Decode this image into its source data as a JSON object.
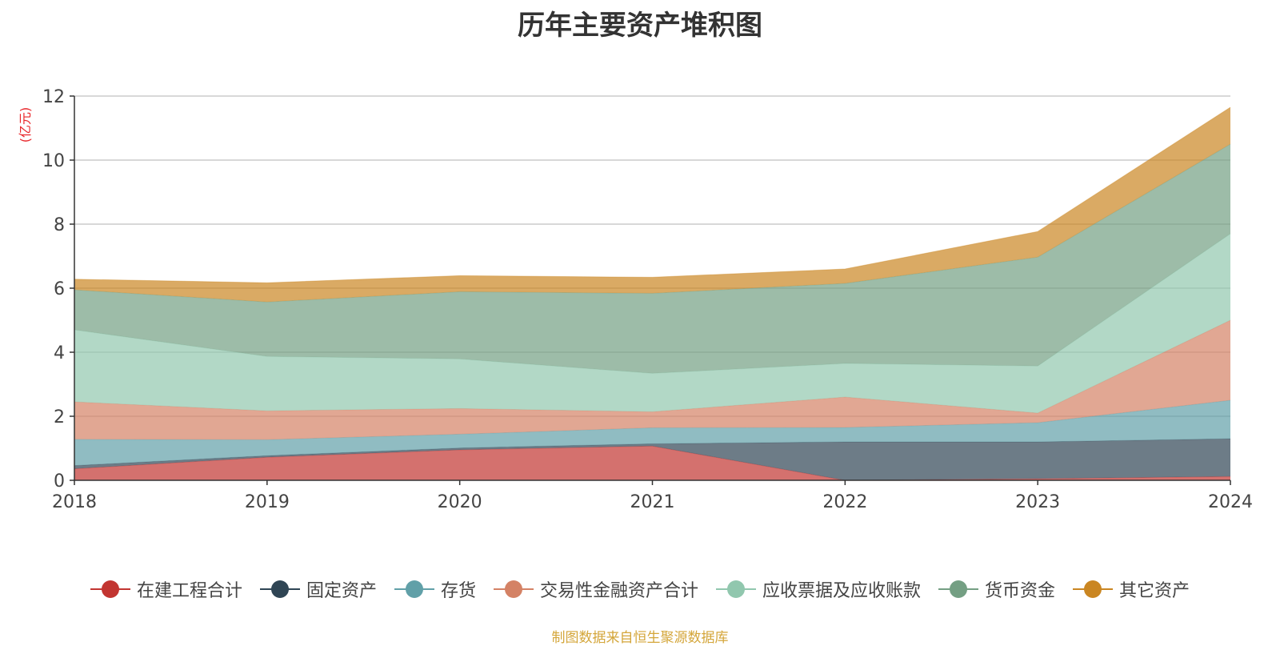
{
  "chart_data": {
    "type": "area",
    "stacked": true,
    "title": "历年主要资产堆积图",
    "ylabel": "(亿元)",
    "xlabel": "",
    "categories": [
      "2018",
      "2019",
      "2020",
      "2021",
      "2022",
      "2023",
      "2024"
    ],
    "ylim": [
      0,
      12
    ],
    "yticks": [
      0,
      2,
      4,
      6,
      8,
      10,
      12
    ],
    "grid": true,
    "legend_position": "bottom",
    "series": [
      {
        "name": "在建工程合计",
        "color": "#c23531",
        "values": [
          0.36,
          0.72,
          0.95,
          1.07,
          0.0,
          0.05,
          0.12
        ]
      },
      {
        "name": "固定资产",
        "color": "#2f4554",
        "values": [
          0.1,
          0.05,
          0.06,
          0.07,
          1.2,
          1.15,
          1.18
        ]
      },
      {
        "name": "存货",
        "color": "#61a0a8",
        "values": [
          0.82,
          0.5,
          0.43,
          0.5,
          0.45,
          0.6,
          1.2
        ]
      },
      {
        "name": "交易性金融资产合计",
        "color": "#d48265",
        "values": [
          1.17,
          0.9,
          0.8,
          0.5,
          0.95,
          0.3,
          2.5
        ]
      },
      {
        "name": "应收票据及应收账款",
        "color": "#91c7ae",
        "values": [
          2.25,
          1.7,
          1.55,
          1.2,
          1.05,
          1.47,
          2.7
        ]
      },
      {
        "name": "货币资金",
        "color": "#749f83",
        "values": [
          1.25,
          1.7,
          2.1,
          2.5,
          2.5,
          3.4,
          2.8
        ]
      },
      {
        "name": "其它资产",
        "color": "#ca8622",
        "values": [
          0.33,
          0.6,
          0.5,
          0.5,
          0.45,
          0.8,
          1.15
        ]
      }
    ]
  },
  "footer": {
    "source": "制图数据来自恒生聚源数据库"
  }
}
